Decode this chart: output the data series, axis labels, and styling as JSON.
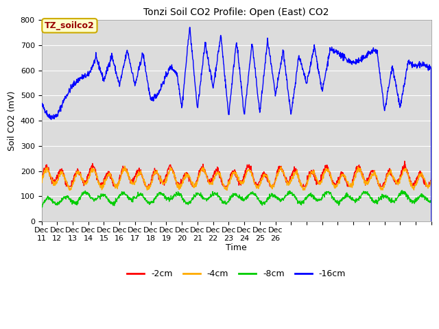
{
  "title": "Tonzi Soil CO2 Profile: Open (East) CO2",
  "ylabel": "Soil CO2 (mV)",
  "xlabel": "Time",
  "xlim": [
    0,
    25
  ],
  "ylim": [
    0,
    800
  ],
  "yticks": [
    0,
    100,
    200,
    300,
    400,
    500,
    600,
    700,
    800
  ],
  "xtick_labels": [
    "Dec 11",
    "Dec 12",
    "Dec 13",
    "Dec 14",
    "Dec 15",
    "Dec 16",
    "Dec 17",
    "Dec 18",
    "Dec 19",
    "Dec 20",
    "Dec 21",
    "Dec 22",
    "Dec 23",
    "Dec 24",
    "Dec 25",
    "Dec 26"
  ],
  "legend_labels": [
    "-2cm",
    "-4cm",
    "-8cm",
    "-16cm"
  ],
  "legend_colors": [
    "#ff0000",
    "#ffaa00",
    "#00cc00",
    "#0000ff"
  ],
  "line_colors": [
    "#ff0000",
    "#ffaa00",
    "#00cc00",
    "#0000ff"
  ],
  "bg_color": "#dcdcdc",
  "box_facecolor": "#ffffcc",
  "box_edgecolor": "#ccaa00",
  "box_text": "TZ_soilco2",
  "box_text_color": "#990000",
  "title_fontsize": 10,
  "axis_fontsize": 9,
  "tick_fontsize": 8,
  "legend_fontsize": 9
}
